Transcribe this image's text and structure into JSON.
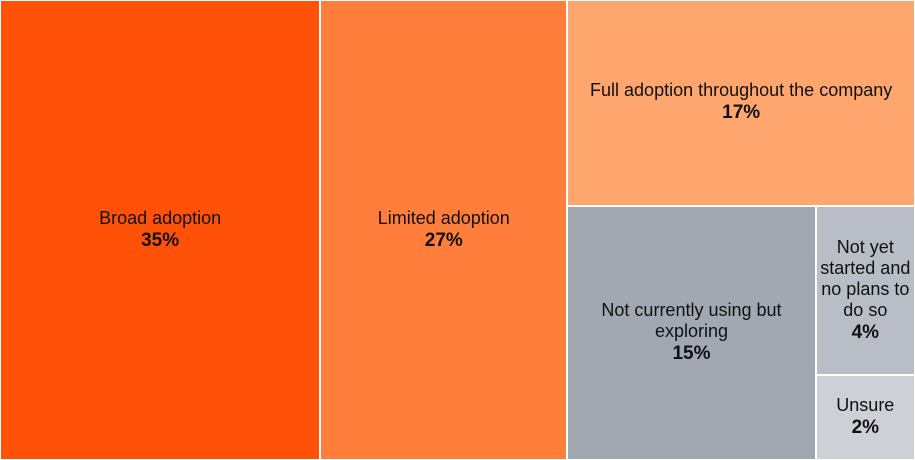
{
  "chart_data": {
    "type": "treemap",
    "title": "",
    "items": [
      {
        "label": "Broad adoption",
        "value": 35,
        "value_label": "35%",
        "color": "#ff5208"
      },
      {
        "label": "Limited adoption",
        "value": 27,
        "value_label": "27%",
        "color": "#ff7e3b"
      },
      {
        "label": "Full adoption throughout the company",
        "value": 17,
        "value_label": "17%",
        "color": "#ffa66f"
      },
      {
        "label": "Not currently using but exploring",
        "value": 15,
        "value_label": "15%",
        "color": "#a2a8b2"
      },
      {
        "label": "Not yet started and no plans to do so",
        "value": 4,
        "value_label": "4%",
        "color": "#b8bdc6"
      },
      {
        "label": "Unsure",
        "value": 2,
        "value_label": "2%",
        "color": "#cdd0d6"
      }
    ]
  }
}
